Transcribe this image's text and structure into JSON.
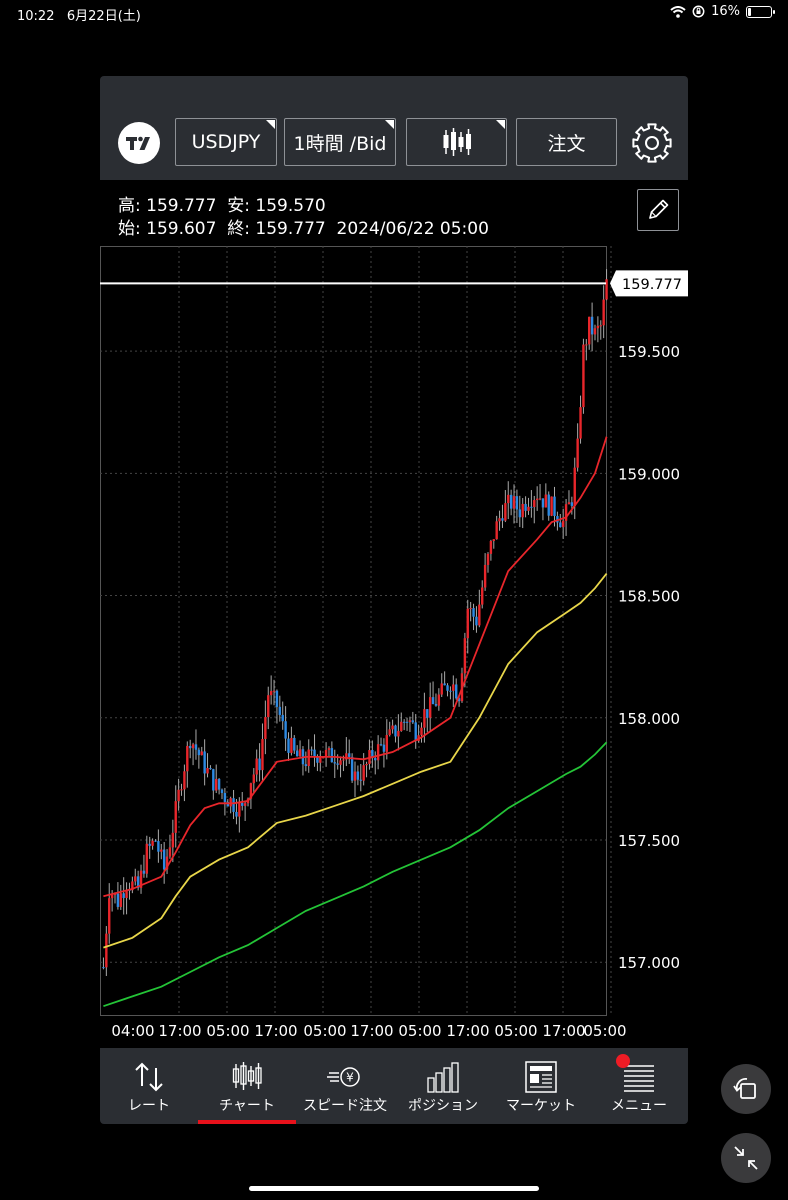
{
  "status_bar": {
    "time": "10:22",
    "date": "6月22日(土)",
    "battery": "16%",
    "battery_level": 0.16,
    "icons": [
      "wifi-icon",
      "rotation-lock-icon",
      "battery-icon"
    ]
  },
  "toolbar": {
    "logo_icon": "tradingview-logo-icon",
    "symbol": "USDJPY",
    "timeframe": "1時間 /Bid",
    "chart_type_icon": "candlestick-icon",
    "order_label": "注文",
    "settings_icon": "gear-icon"
  },
  "ohlc": {
    "high_label": "高:",
    "high": "159.777",
    "low_label": "安:",
    "low": "159.570",
    "open_label": "始:",
    "open": "159.607",
    "close_label": "終:",
    "close": "159.777",
    "datetime": "2024/06/22 05:00",
    "draw_icon": "pencil-icon"
  },
  "chart_data": {
    "type": "candlestick",
    "symbol": "USDJPY",
    "timeframe": "1時間 /Bid",
    "current_price": 159.777,
    "current_price_label": "159.777",
    "y_ticks": [
      "159.500",
      "159.000",
      "158.500",
      "158.000",
      "157.500",
      "157.000"
    ],
    "y_tick_values": [
      159.5,
      159.0,
      158.5,
      158.0,
      157.5,
      157.0
    ],
    "x_ticks": [
      "04:00",
      "17:00",
      "05:00",
      "17:00",
      "05:00",
      "17:00",
      "05:00",
      "17:00",
      "05:00",
      "17:00",
      "05:00"
    ],
    "ylim": [
      156.78,
      159.93
    ],
    "close_path": [
      [
        0,
        156.98
      ],
      [
        2,
        157.3
      ],
      [
        5,
        157.25
      ],
      [
        8,
        157.33
      ],
      [
        12,
        157.3
      ],
      [
        15,
        157.45
      ],
      [
        18,
        157.5
      ],
      [
        21,
        157.38
      ],
      [
        24,
        157.55
      ],
      [
        27,
        157.75
      ],
      [
        30,
        157.92
      ],
      [
        33,
        157.85
      ],
      [
        36,
        157.78
      ],
      [
        39,
        157.72
      ],
      [
        42,
        157.68
      ],
      [
        45,
        157.65
      ],
      [
        48,
        157.62
      ],
      [
        51,
        157.75
      ],
      [
        54,
        157.82
      ],
      [
        57,
        158.1
      ],
      [
        60,
        158.05
      ],
      [
        63,
        157.92
      ],
      [
        66,
        157.85
      ],
      [
        69,
        157.82
      ],
      [
        72,
        157.84
      ],
      [
        75,
        157.86
      ],
      [
        78,
        157.84
      ],
      [
        81,
        157.85
      ],
      [
        84,
        157.82
      ],
      [
        87,
        157.76
      ],
      [
        90,
        157.78
      ],
      [
        93,
        157.85
      ],
      [
        96,
        157.88
      ],
      [
        99,
        157.92
      ],
      [
        102,
        157.96
      ],
      [
        105,
        158.0
      ],
      [
        108,
        157.95
      ],
      [
        111,
        158.02
      ],
      [
        114,
        158.05
      ],
      [
        117,
        158.1
      ],
      [
        120,
        158.15
      ],
      [
        123,
        158.1
      ],
      [
        126,
        158.45
      ],
      [
        129,
        158.4
      ],
      [
        132,
        158.6
      ],
      [
        135,
        158.75
      ],
      [
        138,
        158.85
      ],
      [
        141,
        158.88
      ],
      [
        144,
        158.85
      ],
      [
        147,
        158.9
      ],
      [
        150,
        158.92
      ],
      [
        153,
        158.88
      ],
      [
        156,
        158.85
      ],
      [
        159,
        158.8
      ],
      [
        162,
        158.9
      ],
      [
        164,
        159.1
      ],
      [
        166,
        159.5
      ],
      [
        168,
        159.6
      ],
      [
        170,
        159.57
      ],
      [
        172,
        159.6
      ],
      [
        174,
        159.777
      ]
    ],
    "moving_averages": [
      {
        "color": "#e8262b",
        "points": [
          [
            0,
            157.27
          ],
          [
            10,
            157.3
          ],
          [
            20,
            157.35
          ],
          [
            25,
            157.45
          ],
          [
            30,
            157.56
          ],
          [
            35,
            157.63
          ],
          [
            40,
            157.65
          ],
          [
            45,
            157.65
          ],
          [
            50,
            157.66
          ],
          [
            55,
            157.74
          ],
          [
            60,
            157.82
          ],
          [
            70,
            157.84
          ],
          [
            80,
            157.84
          ],
          [
            90,
            157.83
          ],
          [
            100,
            157.86
          ],
          [
            110,
            157.92
          ],
          [
            120,
            158.0
          ],
          [
            130,
            158.3
          ],
          [
            140,
            158.6
          ],
          [
            150,
            158.73
          ],
          [
            155,
            158.8
          ],
          [
            160,
            158.82
          ],
          [
            165,
            158.9
          ],
          [
            170,
            159.0
          ],
          [
            174,
            159.15
          ]
        ]
      },
      {
        "color": "#e8d64a",
        "points": [
          [
            0,
            157.06
          ],
          [
            10,
            157.1
          ],
          [
            20,
            157.18
          ],
          [
            25,
            157.27
          ],
          [
            30,
            157.35
          ],
          [
            40,
            157.42
          ],
          [
            50,
            157.47
          ],
          [
            60,
            157.57
          ],
          [
            70,
            157.6
          ],
          [
            80,
            157.64
          ],
          [
            90,
            157.68
          ],
          [
            100,
            157.73
          ],
          [
            110,
            157.78
          ],
          [
            120,
            157.82
          ],
          [
            130,
            158.0
          ],
          [
            140,
            158.22
          ],
          [
            150,
            158.35
          ],
          [
            160,
            158.43
          ],
          [
            165,
            158.47
          ],
          [
            170,
            158.53
          ],
          [
            174,
            158.59
          ]
        ]
      },
      {
        "color": "#24c437",
        "points": [
          [
            0,
            156.82
          ],
          [
            10,
            156.86
          ],
          [
            20,
            156.9
          ],
          [
            30,
            156.96
          ],
          [
            40,
            157.02
          ],
          [
            50,
            157.07
          ],
          [
            60,
            157.14
          ],
          [
            70,
            157.21
          ],
          [
            80,
            157.26
          ],
          [
            90,
            157.31
          ],
          [
            100,
            157.37
          ],
          [
            110,
            157.42
          ],
          [
            120,
            157.47
          ],
          [
            130,
            157.54
          ],
          [
            140,
            157.63
          ],
          [
            150,
            157.7
          ],
          [
            160,
            157.77
          ],
          [
            165,
            157.8
          ],
          [
            170,
            157.85
          ],
          [
            174,
            157.9
          ]
        ]
      }
    ]
  },
  "nav": {
    "items": [
      {
        "label": "レート",
        "icon": "arrows-updown-icon"
      },
      {
        "label": "チャート",
        "icon": "candlestick-icon"
      },
      {
        "label": "スピード注文",
        "icon": "speed-order-yen-icon"
      },
      {
        "label": "ポジション",
        "icon": "bar-chart-icon"
      },
      {
        "label": "マーケット",
        "icon": "newspaper-icon"
      },
      {
        "label": "メニュー",
        "icon": "list-menu-icon"
      }
    ],
    "active_index": 1,
    "underline_color": "#e8111b",
    "menu_badge_color": "#ee1c25"
  },
  "floating": {
    "rotate_icon": "rotate-screen-icon",
    "shrink_icon": "shrink-arrows-icon"
  }
}
